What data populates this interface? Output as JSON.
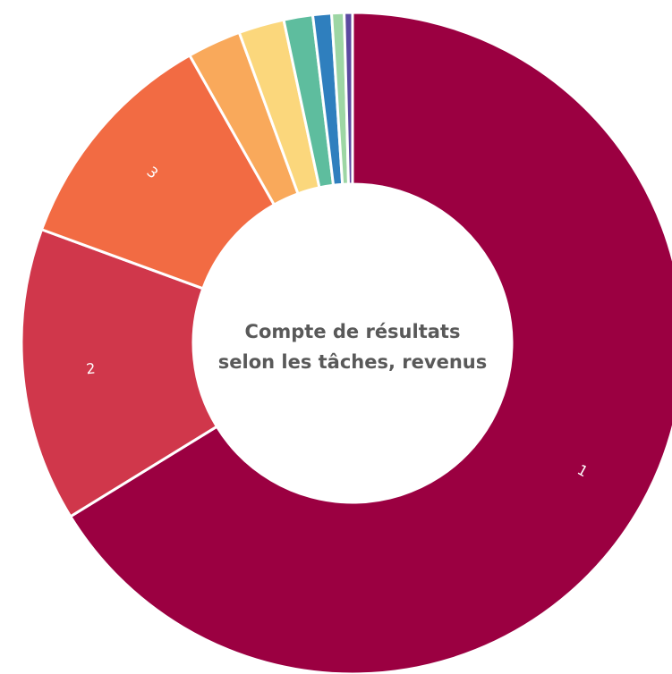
{
  "chart_data": {
    "type": "pie",
    "variant": "donut",
    "title": "Compte de résultats selon les tâches, revenus",
    "title_lines": [
      "Compte de résultats",
      "selon les tâches, revenus"
    ],
    "legend": "none",
    "slices": [
      {
        "label": "1",
        "value": 65.5,
        "color": "#9b0041"
      },
      {
        "label": "2",
        "value": 14.2,
        "color": "#d0374b"
      },
      {
        "label": "3",
        "value": 11.1,
        "color": "#f26b43"
      },
      {
        "label": "",
        "value": 2.6,
        "color": "#f9a95b"
      },
      {
        "label": "",
        "value": 2.2,
        "color": "#fbd77c"
      },
      {
        "label": "",
        "value": 1.4,
        "color": "#5ebd9e"
      },
      {
        "label": "",
        "value": 0.9,
        "color": "#2f7fbe"
      },
      {
        "label": "",
        "value": 0.6,
        "color": "#9dd6a4"
      },
      {
        "label": "",
        "value": 0.4,
        "color": "#5c4aa0"
      }
    ]
  }
}
